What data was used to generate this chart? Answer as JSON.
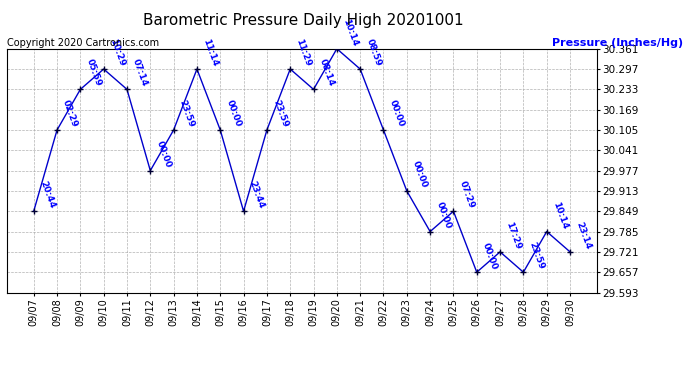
{
  "title": "Barometric Pressure Daily High 20201001",
  "ylabel": "Pressure (Inches/Hg)",
  "copyright": "Copyright 2020 Cartronics.com",
  "dates": [
    "09/07",
    "09/08",
    "09/09",
    "09/10",
    "09/11",
    "09/12",
    "09/13",
    "09/14",
    "09/15",
    "09/16",
    "09/17",
    "09/18",
    "09/19",
    "09/20",
    "09/21",
    "09/22",
    "09/23",
    "09/24",
    "09/25",
    "09/26",
    "09/27",
    "09/28",
    "09/29",
    "09/30"
  ],
  "pressures": [
    29.849,
    30.105,
    30.233,
    30.297,
    30.233,
    29.977,
    30.105,
    30.297,
    30.105,
    29.849,
    30.105,
    30.297,
    30.233,
    30.361,
    30.297,
    30.105,
    29.913,
    29.785,
    29.849,
    29.657,
    29.721,
    29.657,
    29.785,
    29.721
  ],
  "times": [
    "20:44",
    "02:29",
    "05:59",
    "10:29",
    "07:14",
    "00:00",
    "23:59",
    "11:14",
    "00:00",
    "23:44",
    "23:59",
    "11:29",
    "08:14",
    "10:14",
    "08:59",
    "00:00",
    "00:00",
    "00:00",
    "07:29",
    "00:00",
    "17:29",
    "23:59",
    "10:14",
    "23:14"
  ],
  "ylim": [
    29.593,
    30.361
  ],
  "yticks": [
    29.593,
    29.657,
    29.721,
    29.785,
    29.849,
    29.913,
    29.977,
    30.041,
    30.105,
    30.169,
    30.233,
    30.297,
    30.361
  ],
  "line_color": "#0000cc",
  "label_color": "#0000ff",
  "title_color": "#000000",
  "ylabel_color": "#0000ff",
  "copyright_color": "#000000",
  "bg_color": "#ffffff",
  "grid_color": "#aaaaaa",
  "title_fontsize": 11,
  "label_fontsize": 6.5,
  "ylabel_fontsize": 8,
  "copyright_fontsize": 7,
  "ytick_fontsize": 7.5,
  "xtick_fontsize": 7
}
